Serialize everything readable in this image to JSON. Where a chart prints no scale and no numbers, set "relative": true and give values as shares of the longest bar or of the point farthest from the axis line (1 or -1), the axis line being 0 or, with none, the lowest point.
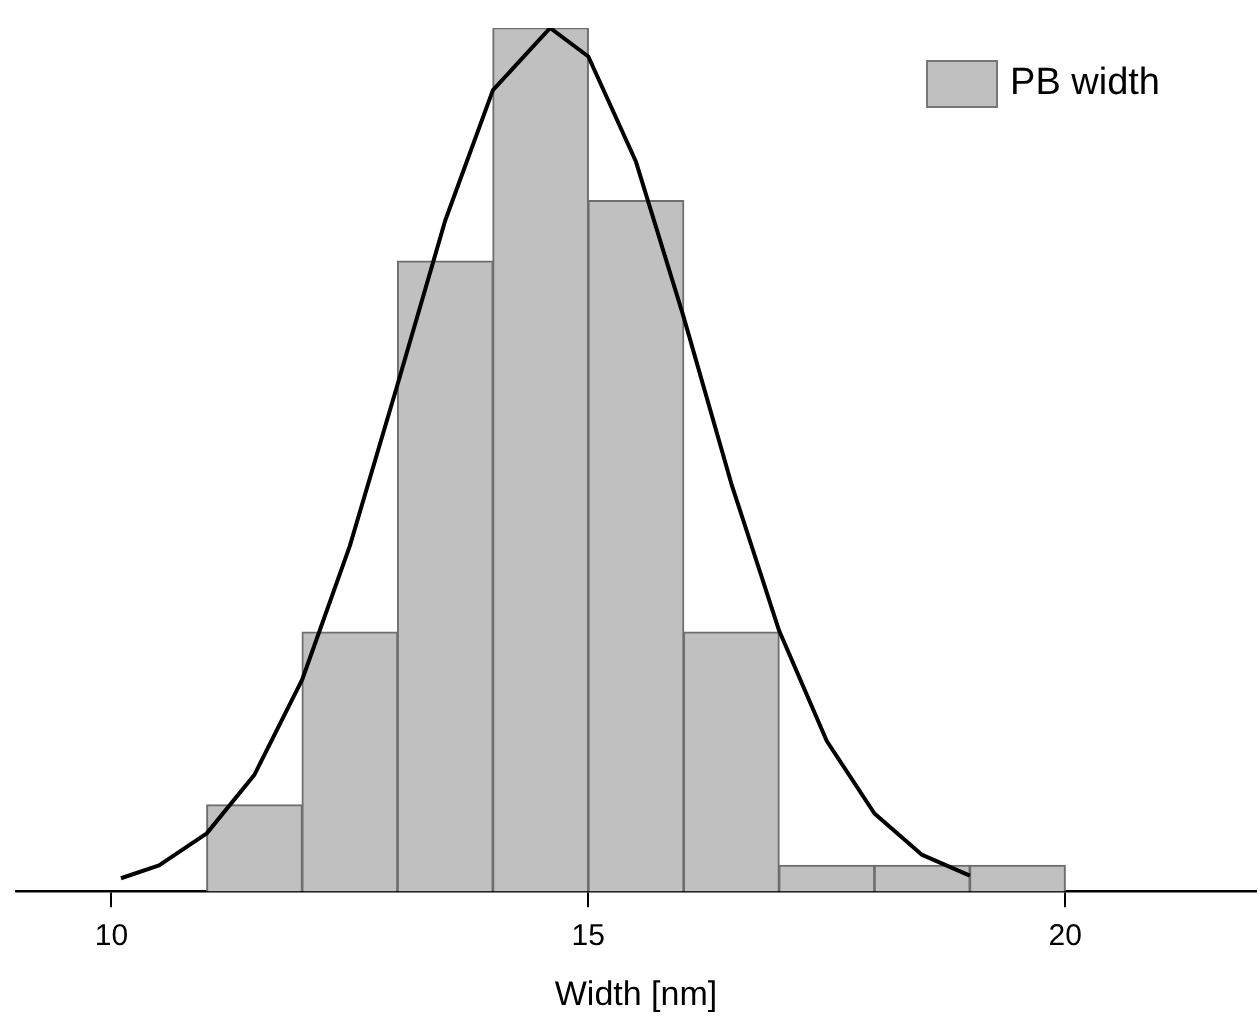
{
  "chart_data": {
    "type": "histogram",
    "xlabel": "Width [nm]",
    "relative": true,
    "xlim": [
      9,
      22
    ],
    "xticks": [
      10,
      15,
      20
    ],
    "grid": false,
    "legend": "top right",
    "bins": [
      11,
      12,
      13,
      14,
      15,
      16,
      17,
      18,
      19,
      20
    ],
    "series": [
      {
        "name": "PB width",
        "color": "#c0c0c0",
        "values": [
          0.1,
          0.3,
          0.73,
          1,
          0.8,
          0.3,
          0.03,
          0.03,
          0.03
        ]
      },
      {
        "type": "line",
        "color": "#000000",
        "marker": "none",
        "x": [
          10.1,
          10.5,
          11,
          11.5,
          12,
          12.5,
          13,
          13.5,
          14,
          14.6,
          15,
          15.5,
          16,
          16.5,
          17,
          17.5,
          18,
          18.5,
          19
        ],
        "values": [
          0.015,
          0.03,
          0.067,
          0.135,
          0.245,
          0.4,
          0.587,
          0.777,
          0.928,
          1,
          0.967,
          0.845,
          0.665,
          0.472,
          0.302,
          0.174,
          0.09,
          0.042,
          0.018
        ]
      }
    ]
  }
}
